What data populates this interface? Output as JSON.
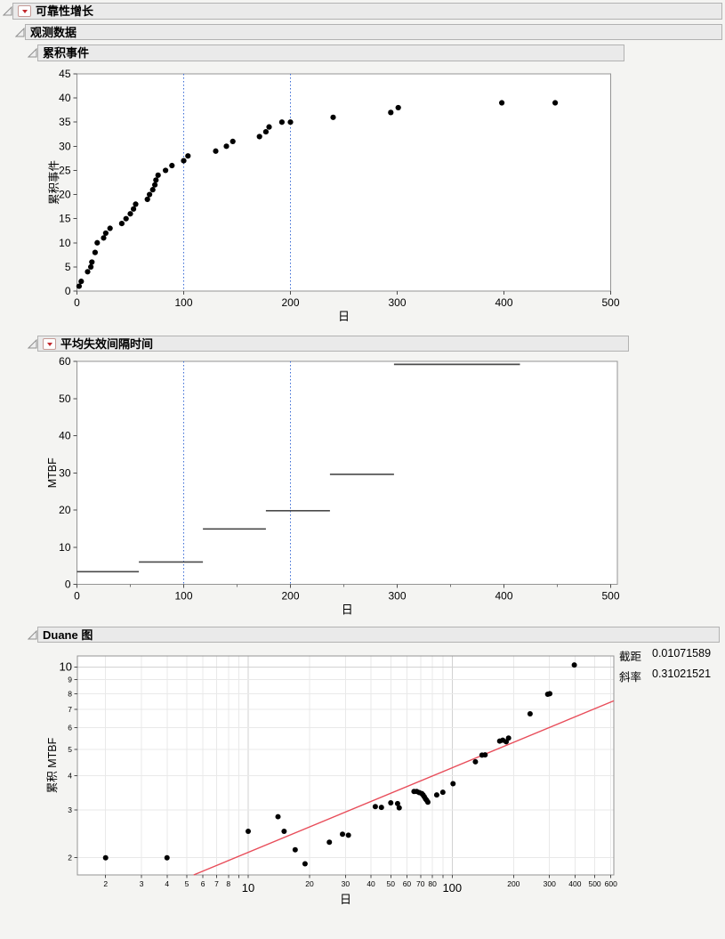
{
  "outline": {
    "root": {
      "label": "可靠性增长",
      "has_menu": true
    },
    "observed": {
      "label": "观测数据",
      "has_menu": false
    },
    "cumulative": {
      "label": "累积事件",
      "has_menu": false
    },
    "mtbf": {
      "label": "平均失效间隔时间",
      "has_menu": true
    },
    "duane": {
      "label": "Duane 图",
      "has_menu": false
    }
  },
  "colors": {
    "ref_line_blue": "#3b6cd6",
    "fit_line_red": "#e84d5a",
    "segment_gray": "#4a4a4a",
    "point_black": "#000000",
    "grid_light": "#e9e9e9",
    "grid_decade": "#d2d2d2",
    "frame_gray": "#949494"
  },
  "chart_data": [
    {
      "type": "scatter",
      "title": "累积事件",
      "xlabel": "日",
      "ylabel": "累积事件",
      "xlim": [
        0,
        500
      ],
      "ylim": [
        0,
        45
      ],
      "x_ticks": [
        0,
        100,
        200,
        300,
        400,
        500
      ],
      "y_ticks": [
        0,
        5,
        10,
        15,
        20,
        25,
        30,
        35,
        40,
        45
      ],
      "ref_lines_x": [
        100,
        200
      ],
      "grid": false,
      "points": [
        [
          2,
          1
        ],
        [
          4,
          2
        ],
        [
          10,
          4
        ],
        [
          13,
          5
        ],
        [
          14,
          6
        ],
        [
          17,
          8
        ],
        [
          19,
          10
        ],
        [
          25,
          11
        ],
        [
          27,
          12
        ],
        [
          31,
          13
        ],
        [
          42,
          14
        ],
        [
          46,
          15
        ],
        [
          50,
          16
        ],
        [
          53,
          17
        ],
        [
          55,
          18
        ],
        [
          66,
          19
        ],
        [
          68,
          20
        ],
        [
          71,
          21
        ],
        [
          73,
          22
        ],
        [
          74,
          23
        ],
        [
          76,
          24
        ],
        [
          83,
          25
        ],
        [
          89,
          26
        ],
        [
          100,
          27
        ],
        [
          104,
          28
        ],
        [
          130,
          29
        ],
        [
          140,
          30
        ],
        [
          146,
          31
        ],
        [
          171,
          32
        ],
        [
          177,
          33
        ],
        [
          180,
          34
        ],
        [
          192,
          35
        ],
        [
          200,
          35
        ],
        [
          240,
          36
        ],
        [
          294,
          37
        ],
        [
          301,
          38
        ],
        [
          398,
          39
        ],
        [
          448,
          39
        ]
      ]
    },
    {
      "type": "line",
      "title": "平均失效间隔时间",
      "xlabel": "日",
      "ylabel": "MTBF",
      "xlim": [
        0,
        500
      ],
      "ylim": [
        0,
        60
      ],
      "x_ticks": [
        0,
        100,
        200,
        300,
        400,
        500
      ],
      "x_minor_ticks": [
        50,
        150,
        250,
        350,
        450
      ],
      "y_ticks": [
        0,
        10,
        20,
        30,
        40,
        50,
        60
      ],
      "ref_lines_x": [
        100,
        200
      ],
      "grid": false,
      "segments": [
        [
          0,
          58,
          3.4
        ],
        [
          58,
          118,
          6.0
        ],
        [
          118,
          177,
          14.9
        ],
        [
          177,
          237,
          19.8
        ],
        [
          237,
          297,
          29.6
        ],
        [
          297,
          415,
          59.2
        ]
      ]
    },
    {
      "type": "scatter",
      "scale": "log-log",
      "title": "Duane 图",
      "xlabel": "日",
      "ylabel": "累积 MTBF",
      "xlim": [
        1.45,
        620
      ],
      "ylim": [
        1.73,
        11
      ],
      "x_ticks_labeled": [
        2,
        3,
        4,
        5,
        6,
        7,
        8,
        10,
        20,
        30,
        40,
        50,
        60,
        70,
        80,
        100,
        200,
        300,
        400,
        500,
        600
      ],
      "x_ticks_unlabeled": [
        9,
        90
      ],
      "x_decade_ticks": [
        10,
        100
      ],
      "y_ticks_labeled": [
        2,
        3,
        4,
        5,
        6,
        7,
        8,
        9,
        10
      ],
      "y_decade_ticks": [
        10
      ],
      "grid": true,
      "legend_position": "top-right",
      "fit": {
        "intercept_label": "截距",
        "intercept_value": "0.01071589",
        "slope_label": "斜率",
        "slope_value": "0.31021521"
      },
      "points": [
        [
          2,
          2.0
        ],
        [
          4,
          2.0
        ],
        [
          10,
          2.5
        ],
        [
          14,
          2.83
        ],
        [
          15,
          2.5
        ],
        [
          17,
          2.14
        ],
        [
          19,
          1.9
        ],
        [
          25,
          2.28
        ],
        [
          29,
          2.44
        ],
        [
          31,
          2.42
        ],
        [
          42,
          3.08
        ],
        [
          45,
          3.06
        ],
        [
          50,
          3.18
        ],
        [
          54,
          3.16
        ],
        [
          55,
          3.05
        ],
        [
          65,
          3.5
        ],
        [
          67,
          3.5
        ],
        [
          69,
          3.47
        ],
        [
          71,
          3.44
        ],
        [
          72,
          3.4
        ],
        [
          73,
          3.35
        ],
        [
          74,
          3.29
        ],
        [
          75,
          3.25
        ],
        [
          76,
          3.2
        ],
        [
          84,
          3.4
        ],
        [
          90,
          3.48
        ],
        [
          101,
          3.74
        ],
        [
          130,
          4.5
        ],
        [
          140,
          4.76
        ],
        [
          145,
          4.77
        ],
        [
          171,
          5.36
        ],
        [
          177,
          5.4
        ],
        [
          184,
          5.33
        ],
        [
          189,
          5.5
        ],
        [
          241,
          6.75
        ],
        [
          294,
          7.96
        ],
        [
          301,
          8.0
        ],
        [
          397,
          10.2
        ]
      ]
    }
  ]
}
